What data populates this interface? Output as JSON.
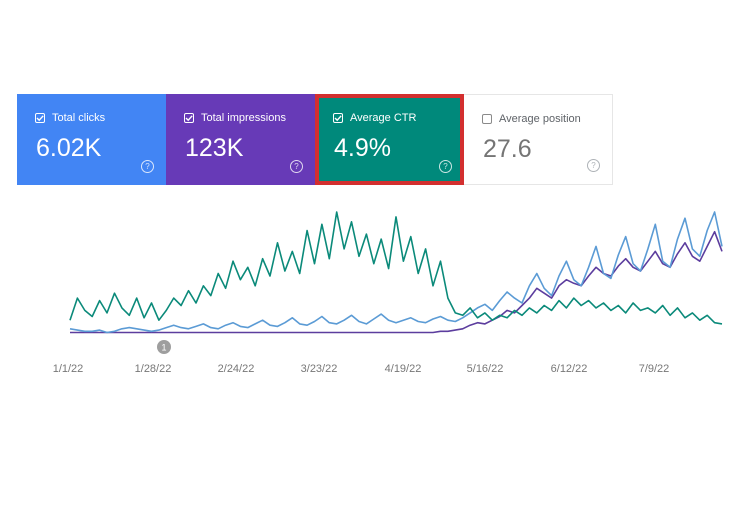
{
  "metrics": [
    {
      "label": "Total clicks",
      "value": "6.02K",
      "checked": true,
      "color": "#4285f4"
    },
    {
      "label": "Total impressions",
      "value": "123K",
      "checked": true,
      "color": "#673ab7"
    },
    {
      "label": "Average CTR",
      "value": "4.9%",
      "checked": true,
      "color": "#00897b",
      "highlighted": true
    },
    {
      "label": "Average position",
      "value": "27.6",
      "checked": false,
      "color": "#ffffff"
    }
  ],
  "help_glyph": "?",
  "annotation_marker": "1",
  "chart_data": {
    "type": "line",
    "x_ticks": [
      "1/1/22",
      "1/28/22",
      "2/24/22",
      "3/23/22",
      "4/19/22",
      "5/16/22",
      "6/12/22",
      "7/9/22"
    ],
    "series": [
      {
        "name": "Total clicks",
        "color": "#5b9bd5",
        "values": [
          5,
          4,
          3,
          3,
          4,
          2,
          3,
          5,
          6,
          5,
          4,
          3,
          4,
          6,
          8,
          6,
          5,
          7,
          9,
          6,
          5,
          8,
          10,
          7,
          6,
          9,
          12,
          8,
          7,
          10,
          14,
          9,
          8,
          11,
          15,
          10,
          9,
          12,
          16,
          11,
          9,
          13,
          17,
          12,
          10,
          12,
          14,
          11,
          10,
          13,
          15,
          12,
          11,
          14,
          18,
          22,
          25,
          20,
          28,
          35,
          30,
          26,
          40,
          50,
          38,
          32,
          48,
          60,
          45,
          40,
          55,
          72,
          50,
          46,
          65,
          80,
          58,
          52,
          70,
          90,
          60,
          55,
          78,
          95,
          70,
          64,
          85,
          100,
          72
        ]
      },
      {
        "name": "Total impressions",
        "color": "#5c3d9e",
        "values": [
          2,
          2,
          2,
          2,
          2,
          2,
          2,
          2,
          2,
          2,
          2,
          2,
          2,
          2,
          2,
          2,
          2,
          2,
          2,
          2,
          2,
          2,
          2,
          2,
          2,
          2,
          2,
          2,
          2,
          2,
          2,
          2,
          2,
          2,
          2,
          2,
          2,
          2,
          2,
          2,
          2,
          2,
          2,
          2,
          2,
          2,
          2,
          2,
          2,
          2,
          3,
          3,
          4,
          5,
          8,
          10,
          9,
          12,
          15,
          20,
          18,
          24,
          30,
          38,
          34,
          30,
          40,
          45,
          42,
          40,
          48,
          55,
          50,
          48,
          56,
          62,
          55,
          52,
          60,
          68,
          58,
          55,
          66,
          75,
          64,
          60,
          72,
          84,
          68
        ]
      },
      {
        "name": "Average CTR",
        "color": "#0b8a7a",
        "values": [
          12,
          30,
          20,
          15,
          28,
          18,
          34,
          22,
          16,
          30,
          14,
          26,
          12,
          20,
          30,
          24,
          36,
          26,
          40,
          32,
          50,
          38,
          60,
          45,
          55,
          40,
          62,
          48,
          75,
          52,
          68,
          50,
          85,
          58,
          90,
          62,
          100,
          70,
          92,
          64,
          82,
          58,
          78,
          54,
          96,
          60,
          80,
          50,
          70,
          40,
          60,
          30,
          18,
          16,
          22,
          14,
          18,
          12,
          16,
          14,
          20,
          16,
          22,
          18,
          24,
          20,
          28,
          22,
          30,
          24,
          28,
          22,
          26,
          20,
          24,
          18,
          26,
          20,
          22,
          18,
          24,
          16,
          22,
          14,
          18,
          12,
          16,
          10,
          9
        ]
      }
    ],
    "annotations": [
      {
        "x": "1/28/22",
        "label": "1"
      }
    ],
    "grid": false,
    "legend": "none"
  }
}
